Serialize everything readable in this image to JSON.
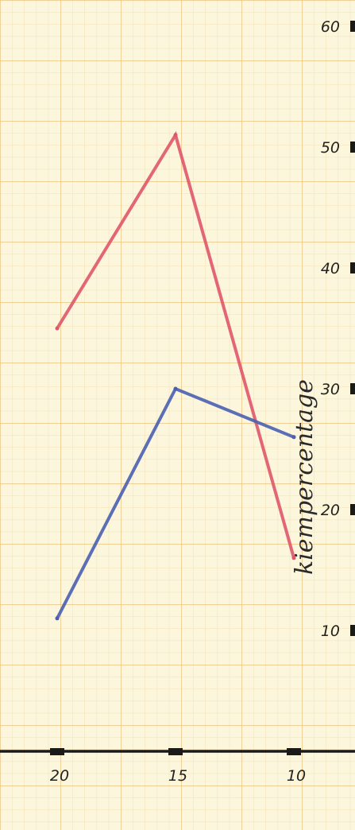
{
  "chart_data": {
    "type": "line",
    "title": "",
    "xlabel": "",
    "ylabel": "kiempercentage",
    "x": [
      20,
      15,
      10
    ],
    "x_ticks": [
      "20",
      "15",
      "10"
    ],
    "y_ticks": [
      "10",
      "20",
      "30",
      "40",
      "50",
      "60"
    ],
    "ylim": [
      0,
      60
    ],
    "grid": true,
    "series": [
      {
        "color": "#e0566a",
        "values": [
          35,
          51,
          16
        ]
      },
      {
        "color": "#4a5fb0",
        "values": [
          11,
          30,
          26
        ]
      }
    ]
  }
}
